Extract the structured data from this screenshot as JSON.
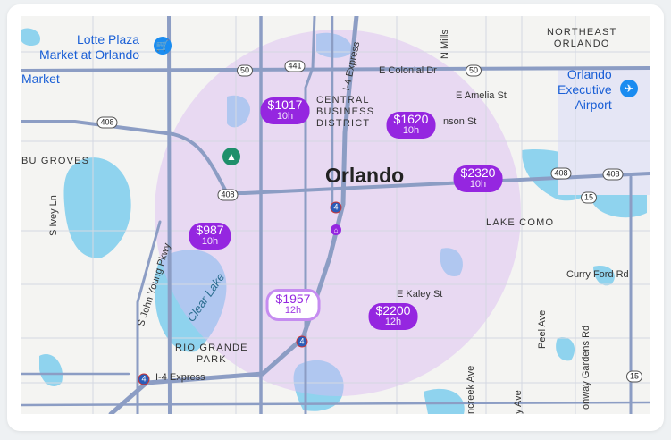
{
  "map": {
    "city_label": "Orlando",
    "area_labels": {
      "northeast_orlando": "NORTHEAST\nORLANDO",
      "central_business_district": "CENTRAL\nBUSINESS\nDISTRICT",
      "lake_como": "LAKE COMO",
      "rio_grande_park": "RIO GRANDE\nPARK",
      "bu_groves": "BU GROVES"
    },
    "poi_labels": {
      "lotte_plaza": "Lotte Plaza\nMarket at Orlando",
      "market_partial": "Market",
      "executive_airport": "Orlando\nExecutive\nAirport"
    },
    "street_labels": {
      "colonial": "E Colonial Dr",
      "amelia": "E Amelia St",
      "robinson": "nson St",
      "kaley": "E Kaley St",
      "curry_ford": "Curry Ford Rd",
      "i4_express_north": "I-4 Express",
      "i4_express_south": "I-4 Express",
      "n_mills": "N Mills",
      "s_ivey": "S Ivey Ln",
      "john_young": "S John Young Pkwy",
      "clear_lake": "Clear Lake",
      "peel": "Peel Ave",
      "conway": "onway Gardens Rd",
      "crystal_lake": "ncreek Ave",
      "ferncreek": "y Ave"
    },
    "route_shields": [
      "441",
      "50",
      "50",
      "408",
      "408",
      "408",
      "408",
      "15",
      "15",
      "4",
      "4",
      "4"
    ],
    "radius_overlay_color": "#d9b8f2",
    "price_markers": [
      {
        "price": "$1017",
        "duration": "10h",
        "selected": false
      },
      {
        "price": "$1620",
        "duration": "10h",
        "selected": false
      },
      {
        "price": "$2320",
        "duration": "10h",
        "selected": false
      },
      {
        "price": "$987",
        "duration": "10h",
        "selected": false
      },
      {
        "price": "$1957",
        "duration": "12h",
        "selected": true
      },
      {
        "price": "$2200",
        "duration": "12h",
        "selected": false
      }
    ],
    "icons": {
      "shopping": "shopping-cart-icon",
      "airport": "airplane-icon",
      "park": "park-icon",
      "home": "home-icon"
    },
    "colors": {
      "marker": "#9526e0",
      "water": "#8fd3ee",
      "road": "#8c9dc4",
      "poi": "#1a5fd6"
    }
  }
}
